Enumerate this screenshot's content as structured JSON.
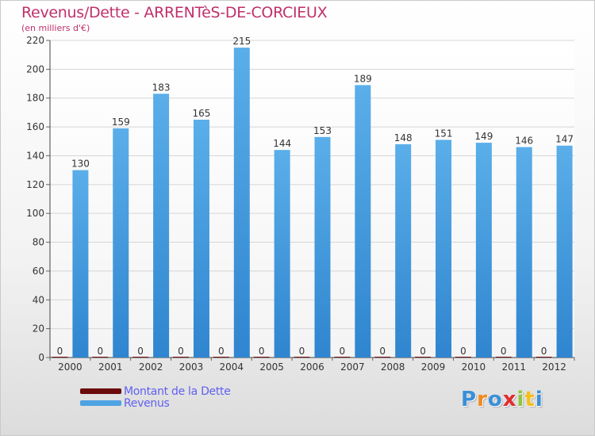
{
  "header": {
    "title": "Revenus/Dette - ARRENTèS-DE-CORCIEUX",
    "subtitle": "(en milliers d'€)"
  },
  "legend": {
    "items": [
      {
        "label": "Montant de la Dette",
        "color": "#6b0a0a"
      },
      {
        "label": "Revenus",
        "color": "#4ea3e3"
      }
    ]
  },
  "logo": {
    "text": "Proxiti"
  },
  "chart_data": {
    "type": "bar",
    "categories": [
      "2000",
      "2001",
      "2002",
      "2003",
      "2004",
      "2005",
      "2006",
      "2007",
      "2008",
      "2009",
      "2010",
      "2011",
      "2012"
    ],
    "series": [
      {
        "name": "Montant de la Dette",
        "values": [
          0,
          0,
          0,
          0,
          0,
          0,
          0,
          0,
          0,
          0,
          0,
          0,
          0
        ],
        "color": "#6b0a0a"
      },
      {
        "name": "Revenus",
        "values": [
          130,
          159,
          183,
          165,
          215,
          144,
          153,
          189,
          148,
          151,
          149,
          146,
          147
        ],
        "color": "#4ea3e3"
      }
    ],
    "data_labels": {
      "Montant de la Dette": [
        "0",
        "0",
        "0",
        "0",
        "0",
        "0",
        "0",
        "0",
        "0",
        "0",
        "0",
        "0",
        "0"
      ],
      "Revenus": [
        "130",
        "159",
        "183",
        "165",
        "215",
        "144",
        "153",
        "189",
        "148",
        "151",
        "149",
        "146",
        "147"
      ]
    },
    "y_ticks": [
      "0",
      "20",
      "40",
      "60",
      "80",
      "100",
      "120",
      "140",
      "160",
      "180",
      "200",
      "220"
    ],
    "ylim": [
      0,
      220
    ],
    "grid": true,
    "legend_position": "bottom-left",
    "title": "Revenus/Dette - ARRENTèS-DE-CORCIEUX",
    "ylabel": "(en milliers d'€)"
  }
}
